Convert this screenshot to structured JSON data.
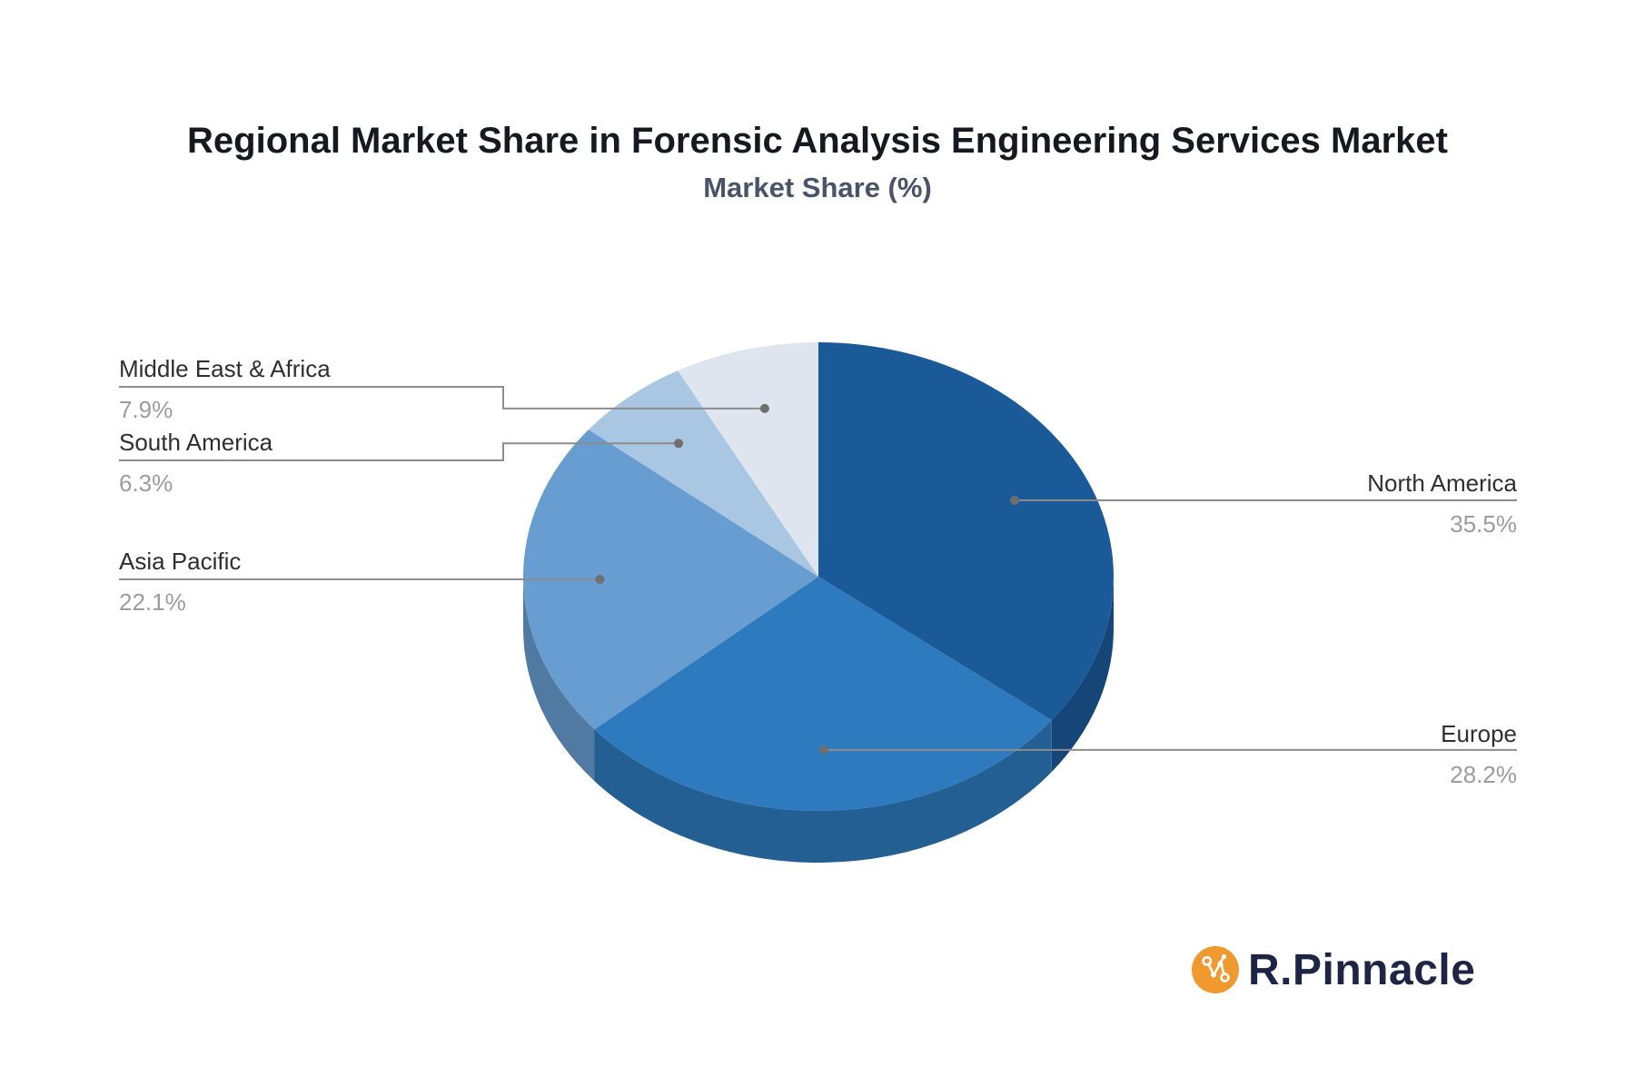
{
  "title": "Regional Market Share in Forensic Analysis Engineering Services Market",
  "subtitle": "Market Share (%)",
  "chart_data": {
    "type": "pie",
    "style": "3d-depth",
    "title": "Regional Market Share in Forensic Analysis Engineering Services Market",
    "subtitle": "Market Share (%)",
    "unit": "%",
    "categories": [
      "North America",
      "Europe",
      "Asia Pacific",
      "South America",
      "Middle East & Africa"
    ],
    "values": [
      35.5,
      28.2,
      22.1,
      6.3,
      7.9
    ],
    "value_labels": [
      "35.5%",
      "28.2%",
      "22.1%",
      "6.3%",
      "7.9%"
    ],
    "colors": [
      "#1B5A99",
      "#2E7ABE",
      "#689DD1",
      "#A9C6E2",
      "#DEE5EF"
    ],
    "start_angle": "12-oclock",
    "direction": "clockwise",
    "legend_position": "none",
    "label_style": "callout-lines",
    "callout_line_color": "#8C8C8C",
    "label_text_color": "#2F2F2F",
    "value_text_color": "#9C9C9C"
  },
  "logo": {
    "brand": "R.Pinnacle",
    "icon": "network-nodes-icon",
    "icon_color": "#F0992E",
    "text_color": "#1D2444"
  }
}
